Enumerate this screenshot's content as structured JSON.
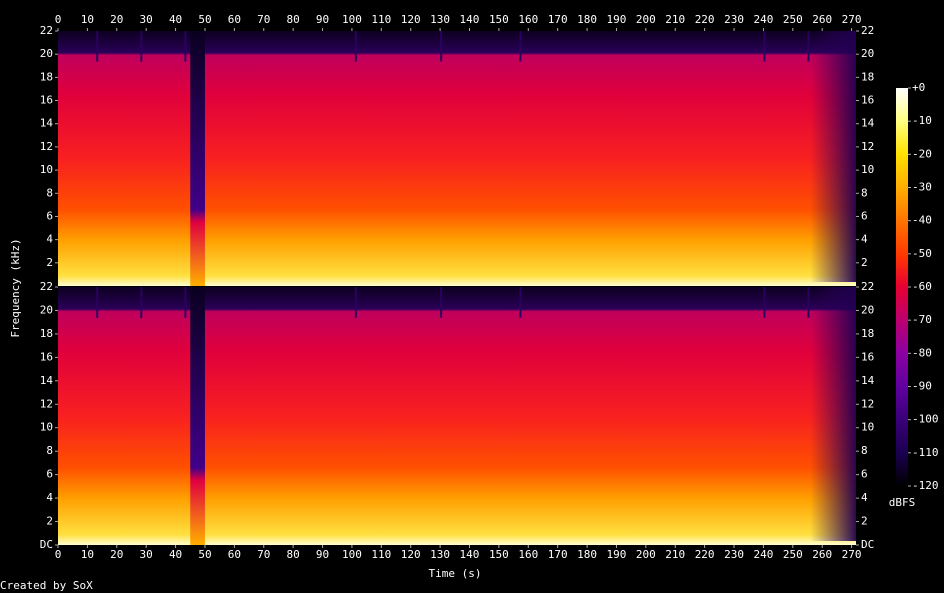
{
  "chart_data": {
    "type": "spectrogram",
    "xlabel": "Time (s)",
    "ylabel": "Frequency (kHz)",
    "footer": "Created by SoX",
    "xlim": [
      0,
      271.5
    ],
    "xticks": [
      0,
      10,
      20,
      30,
      40,
      50,
      60,
      70,
      80,
      90,
      100,
      110,
      120,
      130,
      140,
      150,
      160,
      170,
      180,
      190,
      200,
      210,
      220,
      230,
      240,
      250,
      260,
      270
    ],
    "ylim": [
      0,
      22
    ],
    "channels": [
      {
        "yticks": [
          2,
          4,
          6,
          8,
          10,
          12,
          14,
          16,
          18,
          20,
          22
        ]
      },
      {
        "yticks": [
          {
            "value": 0,
            "label": "DC"
          },
          2,
          4,
          6,
          8,
          10,
          12,
          14,
          16,
          18,
          20,
          22
        ]
      }
    ],
    "colorbar": {
      "label": "dBFS",
      "lim": [
        -120,
        0
      ],
      "ticks": [
        {
          "value": 0,
          "label": "+0"
        },
        -10,
        -20,
        -30,
        -40,
        -50,
        -60,
        -70,
        -80,
        -90,
        -100,
        -110,
        -120
      ],
      "colors": [
        "#000000",
        "#1a0050",
        "#3a0078",
        "#6000a0",
        "#8c00a0",
        "#bc0070",
        "#e60032",
        "#ff3a00",
        "#ff7400",
        "#ffae00",
        "#ffe000",
        "#ffff80",
        "#ffffff"
      ]
    }
  }
}
